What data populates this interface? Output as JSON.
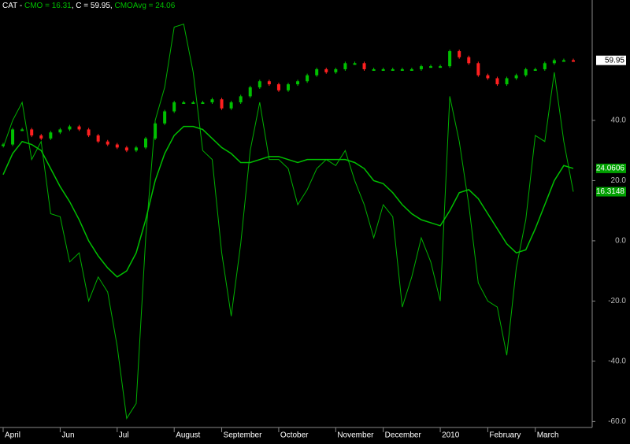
{
  "chart_data": {
    "type": "line",
    "title_parts": [
      {
        "text": "CAT - ",
        "color": "#ffffff"
      },
      {
        "text": "CMO = 16.31",
        "color": "#00c000"
      },
      {
        "text": ", C = 59.95, ",
        "color": "#ffffff"
      },
      {
        "text": "CMOAvg = 24.06",
        "color": "#00c000"
      }
    ],
    "categories": [
      "April",
      null,
      null,
      null,
      null,
      null,
      "Jun",
      null,
      null,
      null,
      null,
      null,
      "Jul",
      null,
      null,
      null,
      null,
      null,
      "August",
      null,
      null,
      null,
      null,
      "September",
      null,
      null,
      null,
      null,
      null,
      "October",
      null,
      null,
      null,
      null,
      null,
      "November",
      null,
      null,
      null,
      null,
      "December",
      null,
      null,
      null,
      null,
      null,
      "2010",
      null,
      null,
      null,
      null,
      "February",
      null,
      null,
      null,
      null,
      "March",
      null,
      null,
      null,
      null
    ],
    "series": [
      {
        "name": "C",
        "style": "candle",
        "color": "#00c000",
        "down_color": "#ff2020",
        "label_bg": "#ffffff",
        "label_color": "#000000",
        "last_label": "59.95",
        "values": [
          32,
          37,
          37,
          35,
          34,
          36,
          37,
          38,
          37,
          35,
          33,
          32,
          31,
          30,
          31,
          34,
          39,
          43,
          46,
          46,
          46,
          46,
          47,
          44,
          46,
          48,
          51,
          53,
          52,
          50,
          52,
          53,
          55,
          57,
          56,
          57,
          59,
          59,
          57,
          57,
          57,
          57,
          57,
          57,
          58,
          58,
          58,
          63,
          61,
          59,
          55,
          54,
          52,
          54,
          55,
          57,
          57,
          59,
          60,
          60,
          59.95
        ]
      },
      {
        "name": "CMO",
        "style": "line",
        "color": "#00b000",
        "width": 1,
        "label_bg": "#00a000",
        "label_color": "#ffffff",
        "last_label": "16.3148",
        "values": [
          31,
          40,
          46,
          27,
          33,
          9,
          8,
          -7,
          -4,
          -20,
          -12,
          -17,
          -35,
          -59,
          -54,
          1,
          40,
          51,
          71,
          72,
          56,
          30,
          27,
          -4,
          -25,
          -1,
          30,
          46,
          27,
          27,
          24,
          12,
          17,
          24,
          27,
          25,
          30,
          20,
          12,
          1,
          12,
          8,
          -22,
          -12,
          1,
          -7,
          -20,
          48,
          33,
          12,
          -14,
          -20,
          -22,
          -38,
          -9,
          7,
          35,
          33,
          56,
          33,
          16.3148
        ]
      },
      {
        "name": "CMOAvg",
        "style": "line",
        "color": "#00c000",
        "width": 1.5,
        "label_bg": "#00a000",
        "label_color": "#ffffff",
        "last_label": "24.0606",
        "values": [
          22,
          29,
          33,
          32,
          30,
          24,
          18,
          13,
          7,
          0,
          -5,
          -9,
          -12,
          -10,
          -4,
          7,
          20,
          29,
          35,
          38,
          38,
          37,
          34,
          31,
          29,
          26,
          26,
          27,
          28,
          28,
          27,
          26,
          27,
          27,
          27,
          27,
          27,
          26,
          24,
          20,
          19,
          16,
          12,
          9,
          7,
          6,
          5,
          10,
          16,
          17,
          14,
          9,
          4,
          -1,
          -4,
          -3,
          4,
          12,
          20,
          25,
          24.0606
        ]
      }
    ],
    "ylim": [
      -62,
      80
    ],
    "yticks": [
      {
        "value": 40,
        "label": "40.0"
      },
      {
        "value": 20,
        "label": "20.0"
      },
      {
        "value": 0,
        "label": "0.0"
      },
      {
        "value": -20,
        "label": "-20.0"
      },
      {
        "value": -40,
        "label": "-40.0"
      },
      {
        "value": -60,
        "label": "-60.0"
      }
    ]
  }
}
